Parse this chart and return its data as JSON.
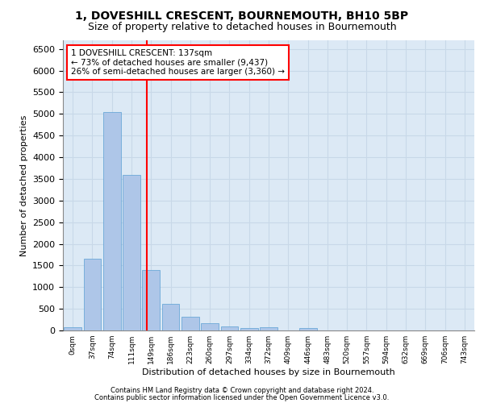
{
  "title1": "1, DOVESHILL CRESCENT, BOURNEMOUTH, BH10 5BP",
  "title2": "Size of property relative to detached houses in Bournemouth",
  "xlabel": "Distribution of detached houses by size in Bournemouth",
  "ylabel": "Number of detached properties",
  "footnote1": "Contains HM Land Registry data © Crown copyright and database right 2024.",
  "footnote2": "Contains public sector information licensed under the Open Government Licence v3.0.",
  "bar_labels": [
    "0sqm",
    "37sqm",
    "74sqm",
    "111sqm",
    "149sqm",
    "186sqm",
    "223sqm",
    "260sqm",
    "297sqm",
    "334sqm",
    "372sqm",
    "409sqm",
    "446sqm",
    "483sqm",
    "520sqm",
    "557sqm",
    "594sqm",
    "632sqm",
    "669sqm",
    "706sqm",
    "743sqm"
  ],
  "bar_values": [
    75,
    1650,
    5050,
    3600,
    1400,
    620,
    310,
    160,
    100,
    60,
    75,
    0,
    60,
    0,
    0,
    0,
    0,
    0,
    0,
    0,
    0
  ],
  "bar_color": "#aec6e8",
  "bar_edge_color": "#5a9fd4",
  "vline_x": 3.78,
  "vline_color": "red",
  "annotation_text": "1 DOVESHILL CRESCENT: 137sqm\n← 73% of detached houses are smaller (9,437)\n26% of semi-detached houses are larger (3,360) →",
  "annotation_box_color": "white",
  "annotation_box_edge_color": "red",
  "ylim": [
    0,
    6700
  ],
  "yticks": [
    0,
    500,
    1000,
    1500,
    2000,
    2500,
    3000,
    3500,
    4000,
    4500,
    5000,
    5500,
    6000,
    6500
  ],
  "grid_color": "#c8d8e8",
  "background_color": "#dce9f5",
  "fig_background": "#ffffff",
  "title1_fontsize": 10,
  "title2_fontsize": 9
}
